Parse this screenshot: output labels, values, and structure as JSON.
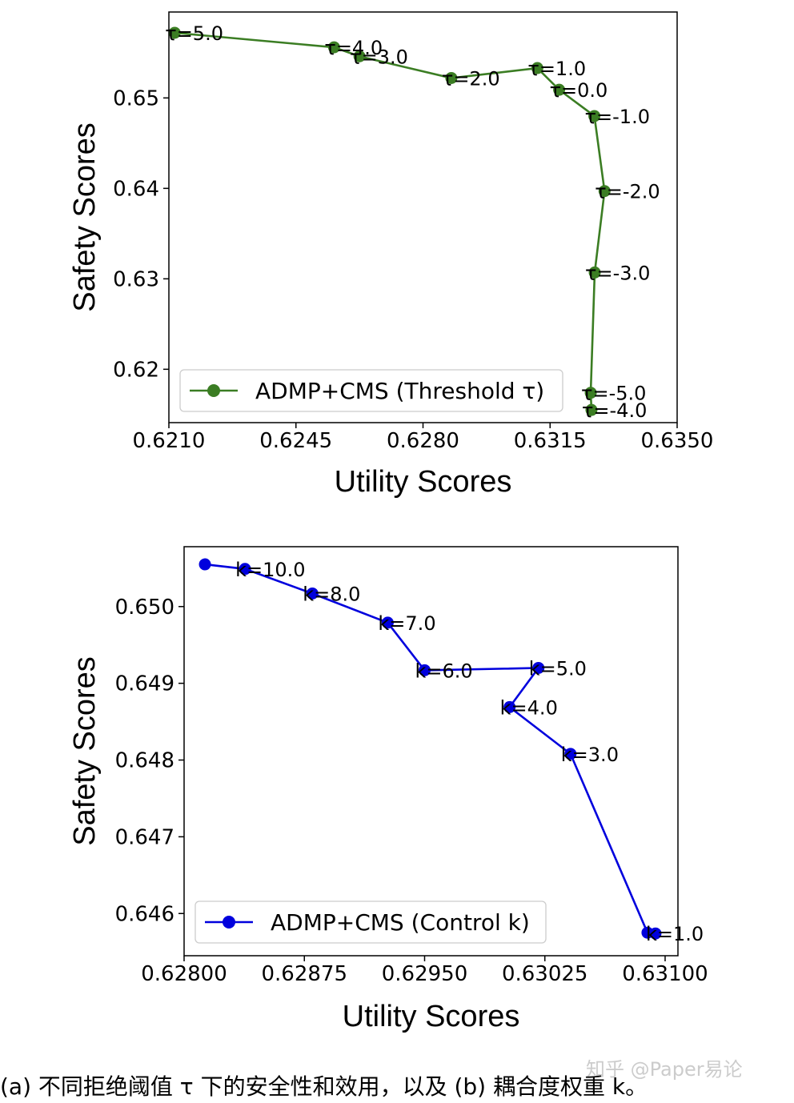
{
  "chart_data": [
    {
      "type": "line",
      "xlabel": "Utility Scores",
      "ylabel": "Safety Scores",
      "xlim": [
        0.621,
        0.635
      ],
      "ylim": [
        0.6141,
        0.6595
      ],
      "xticks": [
        "0.6210",
        "0.6245",
        "0.6280",
        "0.6315",
        "0.6350"
      ],
      "xtick_values": [
        0.621,
        0.6245,
        0.628,
        0.6315,
        0.635
      ],
      "yticks": [
        "0.62",
        "0.63",
        "0.64",
        "0.65"
      ],
      "ytick_values": [
        0.62,
        0.63,
        0.64,
        0.65
      ],
      "color": "#3b7d23",
      "legend": "ADMP+CMS (Threshold τ)",
      "legend_loc": "lower-left",
      "series": [
        {
          "name": "ADMP+CMS (Threshold τ)",
          "points": [
            {
              "x": 0.62116,
              "y": 0.6572,
              "label": "τ=5.0"
            },
            {
              "x": 0.62555,
              "y": 0.6556,
              "label": "τ=4.0"
            },
            {
              "x": 0.62625,
              "y": 0.6546,
              "label": "τ=3.0"
            },
            {
              "x": 0.62878,
              "y": 0.6522,
              "label": "τ=2.0"
            },
            {
              "x": 0.63115,
              "y": 0.6533,
              "label": "τ=1.0"
            },
            {
              "x": 0.63175,
              "y": 0.6509,
              "label": "τ=0.0"
            },
            {
              "x": 0.63272,
              "y": 0.648,
              "label": "τ=-1.0"
            },
            {
              "x": 0.633,
              "y": 0.6397,
              "label": "τ=-2.0"
            },
            {
              "x": 0.63273,
              "y": 0.6307,
              "label": "τ=-3.0"
            },
            {
              "x": 0.63262,
              "y": 0.6174,
              "label": "τ=-5.0"
            },
            {
              "x": 0.63264,
              "y": 0.6155,
              "label": "τ=-4.0"
            }
          ]
        }
      ]
    },
    {
      "type": "line",
      "xlabel": "Utility Scores",
      "ylabel": "Safety Scores",
      "xlim": [
        0.628,
        0.63108
      ],
      "ylim": [
        0.64545,
        0.65078
      ],
      "xticks": [
        "0.62800",
        "0.62875",
        "0.62950",
        "0.63025",
        "0.63100"
      ],
      "xtick_values": [
        0.628,
        0.62875,
        0.6295,
        0.63025,
        0.631
      ],
      "yticks": [
        "0.646",
        "0.647",
        "0.648",
        "0.649",
        "0.650"
      ],
      "ytick_values": [
        0.646,
        0.647,
        0.648,
        0.649,
        0.65
      ],
      "color": "#0000dd",
      "legend": "ADMP+CMS (Control k)",
      "legend_loc": "lower-left",
      "series": [
        {
          "name": "ADMP+CMS (Control k)",
          "points": [
            {
              "x": 0.62813,
              "y": 0.65055,
              "label": ""
            },
            {
              "x": 0.62838,
              "y": 0.65049,
              "label": "k=10.0"
            },
            {
              "x": 0.6288,
              "y": 0.65017,
              "label": "k=8.0"
            },
            {
              "x": 0.62927,
              "y": 0.64979,
              "label": "k=7.0"
            },
            {
              "x": 0.6295,
              "y": 0.64917,
              "label": "k=6.0"
            },
            {
              "x": 0.63021,
              "y": 0.6492,
              "label": "k=5.0"
            },
            {
              "x": 0.63003,
              "y": 0.64869,
              "label": "k=4.0"
            },
            {
              "x": 0.63041,
              "y": 0.64808,
              "label": "k=3.0"
            },
            {
              "x": 0.63089,
              "y": 0.64575,
              "label": ""
            },
            {
              "x": 0.63094,
              "y": 0.64574,
              "label": "k=1.0"
            }
          ]
        }
      ]
    }
  ],
  "caption": "(a) 不同拒绝阈值 τ 下的安全性和效用，以及 (b) 耦合度权重 k。",
  "watermark": "知乎 @Paper易论"
}
